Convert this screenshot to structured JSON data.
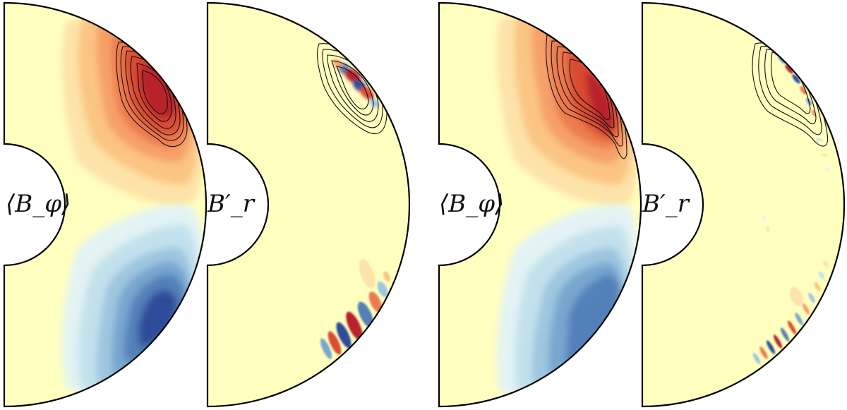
{
  "figure": {
    "panels": [
      {
        "id": "p1",
        "label": "⟨B_φ⟩",
        "field": "mean-toroidal"
      },
      {
        "id": "p2",
        "label": "B′_r",
        "field": "radial-perturbation"
      },
      {
        "id": "p3",
        "label": "⟨B_φ⟩",
        "field": "mean-toroidal"
      },
      {
        "id": "p4",
        "label": "B′_r",
        "field": "radial-perturbation"
      }
    ],
    "colors": {
      "background": "#ffffc0",
      "red_1": "#fde3a8",
      "red_2": "#fbc483",
      "red_3": "#f6a068",
      "red_4": "#ec7a4e",
      "red_5": "#d94c32",
      "red_6": "#b8242a",
      "blue_1": "#e3f3f4",
      "blue_2": "#c3e1ec",
      "blue_3": "#9ec6df",
      "blue_4": "#77a6cf",
      "blue_5": "#5380b8",
      "blue_6": "#2d4c9a",
      "contour": "#111111",
      "outline": "#000000"
    }
  }
}
